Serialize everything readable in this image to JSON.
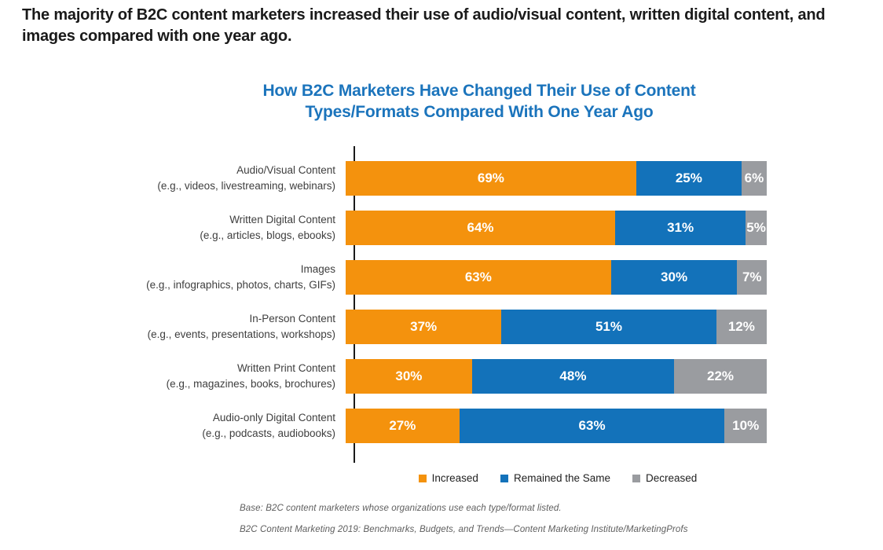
{
  "page": {
    "headline": "The majority of B2C content marketers increased their use of audio/visual content, written digital content, and images compared with one year ago."
  },
  "colors": {
    "headline_text": "#1A1A1A",
    "title_text": "#1B74BC",
    "axis_line": "#1A1A1A",
    "increased": "#F4920D",
    "remained_the_same": "#1372BA",
    "decreased": "#9A9CA0",
    "bar_value_text": "#FFFFFF",
    "footnote_text": "#5E5E5E"
  },
  "chart_data": {
    "type": "bar",
    "orientation": "horizontal",
    "stacked": true,
    "title": "How B2C Marketers Have Changed Their Use of Content Types/Formats Compared With One Year Ago",
    "xlabel": "",
    "ylabel": "",
    "xlim": [
      0,
      100
    ],
    "grid": false,
    "legend_position": "bottom",
    "value_suffix": "%",
    "categories": [
      {
        "label": "Audio/Visual Content",
        "sublabel": "(e.g., videos, livestreaming, webinars)"
      },
      {
        "label": "Written Digital Content",
        "sublabel": "(e.g., articles, blogs, ebooks)"
      },
      {
        "label": "Images",
        "sublabel": "(e.g., infographics, photos, charts, GIFs)"
      },
      {
        "label": "In-Person Content",
        "sublabel": "(e.g., events, presentations, workshops)"
      },
      {
        "label": "Written Print Content",
        "sublabel": "(e.g., magazines, books, brochures)"
      },
      {
        "label": "Audio-only Digital Content",
        "sublabel": "(e.g., podcasts, audiobooks)"
      }
    ],
    "series": [
      {
        "name": "Increased",
        "color": "#F4920D",
        "values": [
          69,
          64,
          63,
          37,
          30,
          27
        ]
      },
      {
        "name": "Remained the Same",
        "color": "#1372BA",
        "values": [
          25,
          31,
          30,
          51,
          48,
          63
        ]
      },
      {
        "name": "Decreased",
        "color": "#9A9CA0",
        "values": [
          6,
          5,
          7,
          12,
          22,
          10
        ]
      }
    ]
  },
  "footnotes": {
    "base_note": "Base: B2C content marketers whose organizations use each type/format listed.",
    "source_note": "B2C Content Marketing 2019: Benchmarks, Budgets, and Trends—Content Marketing Institute/MarketingProfs"
  }
}
